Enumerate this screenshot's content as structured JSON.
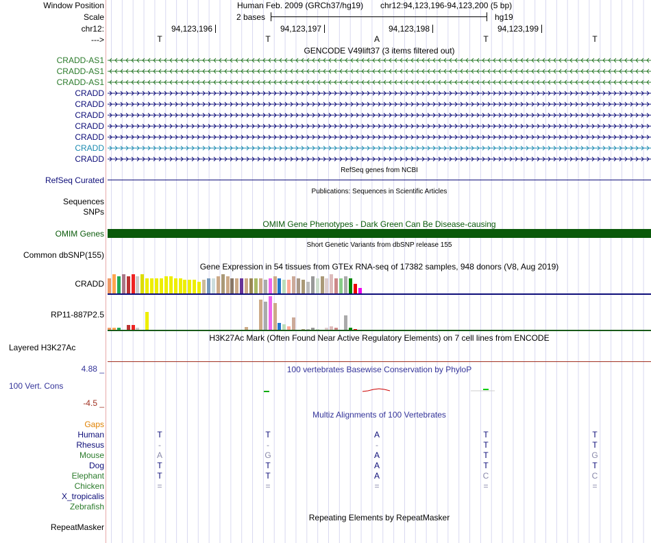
{
  "header": {
    "window_position_label": "Window Position",
    "scale_label": "Scale",
    "chrom_label": "chr12:",
    "strand_label": "--->",
    "assembly_title": "Human Feb. 2009 (GRCh37/hg19)",
    "position": "chr12:94,123,196-94,123,200 (5 bp)",
    "scale_text": "2 bases",
    "db": "hg19",
    "ruler": [
      "94,123,196",
      "94,123,197",
      "94,123,198",
      "94,123,199"
    ],
    "sequence": [
      "T",
      "T",
      "A",
      "T",
      "T"
    ]
  },
  "gencode": {
    "title": "GENCODE V49lift37 (3 items filtered out)",
    "items": [
      {
        "name": "CRADD-AS1",
        "strand": "-",
        "color": "#2a7a2a"
      },
      {
        "name": "CRADD-AS1",
        "strand": "-",
        "color": "#2a7a2a"
      },
      {
        "name": "CRADD-AS1",
        "strand": "-",
        "color": "#2a7a2a"
      },
      {
        "name": "CRADD",
        "strand": "+",
        "color": "#0c0c78"
      },
      {
        "name": "CRADD",
        "strand": "+",
        "color": "#0c0c78"
      },
      {
        "name": "CRADD",
        "strand": "+",
        "color": "#0c0c78"
      },
      {
        "name": "CRADD",
        "strand": "+",
        "color": "#0c0c78"
      },
      {
        "name": "CRADD",
        "strand": "+",
        "color": "#0c0c78"
      },
      {
        "name": "CRADD",
        "strand": "+",
        "color": "#1a8ab0"
      },
      {
        "name": "CRADD",
        "strand": "+",
        "color": "#0c0c78"
      }
    ]
  },
  "refseq": {
    "title": "RefSeq genes from NCBI",
    "label": "RefSeq Curated",
    "color": "#0c0c78"
  },
  "publications": {
    "title": "Publications: Sequences in Scientific Articles",
    "label1": "Sequences",
    "label2": "SNPs"
  },
  "omim": {
    "title": "OMIM Gene Phenotypes - Dark Green Can Be Disease-causing",
    "label": "OMIM Genes",
    "color": "#0a5a0a"
  },
  "dbsnp": {
    "title": "Short Genetic Variants from dbSNP release 155",
    "label": "Common dbSNP(155)"
  },
  "gtex": {
    "title": "Gene Expression in 54 tissues from GTEx RNA-seq of 17382 samples, 948 donors (V8, Aug 2019)",
    "genes": [
      {
        "name": "CRADD",
        "line_color": "#0c0c78",
        "values": [
          8,
          10,
          9,
          10,
          9,
          10,
          9,
          10,
          8,
          8,
          8,
          8,
          9,
          9,
          8,
          8,
          7,
          7,
          7,
          6,
          7,
          8,
          8,
          9,
          10,
          9,
          8,
          8,
          8,
          8,
          8,
          8,
          8,
          7,
          8,
          9,
          8,
          7,
          7,
          9,
          8,
          7,
          6,
          9,
          8,
          9,
          8,
          10,
          8,
          8,
          9,
          8,
          5,
          3
        ]
      },
      {
        "name": "RP11-887P2.5",
        "line_color": "#1a5a1a",
        "values": [
          1.2,
          1.2,
          1,
          0,
          2.8,
          2.8,
          1,
          0,
          10,
          0,
          0,
          0,
          0,
          0,
          0,
          0,
          0,
          0,
          0,
          0,
          0,
          0,
          0,
          0,
          0,
          0,
          0,
          0,
          0,
          1.5,
          0,
          0,
          17,
          16,
          19,
          15,
          4,
          3,
          2,
          7,
          0,
          0.5,
          0.5,
          1,
          0.5,
          0,
          1.2,
          2,
          1.2,
          0,
          8,
          1.2,
          0.5,
          0
        ]
      }
    ],
    "colors": [
      "#ee9966",
      "#ffa54f",
      "#22aa55",
      "#aa7788",
      "#bb3333",
      "#ee2222",
      "#cccccc",
      "#dddd00",
      "#eeee00",
      "#eeee00",
      "#eeee00",
      "#eeee00",
      "#eeee00",
      "#eeee00",
      "#eeee00",
      "#eeee00",
      "#eeee00",
      "#eeee00",
      "#eeee00",
      "#eeee00",
      "#ccbb99",
      "#7799bb",
      "#ccdddd",
      "#ccaa88",
      "#aa9977",
      "#ccaa88",
      "#887766",
      "#ccaa88",
      "#663399",
      "#ccaa88",
      "#998855",
      "#aabb66",
      "#ccaa88",
      "#aaaaaa",
      "#ee66ee",
      "#ccaa88",
      "#2277cc",
      "#bbddbb",
      "#ffaa99",
      "#ccaa99",
      "#aa9988",
      "#aa9977",
      "#bbbbbb",
      "#999999",
      "#ccddcc",
      "#aa9977",
      "#ddcccc",
      "#ddbbbb",
      "#cc8888",
      "#88cc88",
      "#aaaaaa",
      "#008800",
      "#ee0000",
      "#ee00ee"
    ]
  },
  "h3k27ac": {
    "title": "H3K27Ac Mark (Often Found Near Active Regulatory Elements) on 7 cell lines from ENCODE",
    "label": "Layered H3K27Ac"
  },
  "phylop": {
    "title": "100 vertebrates Basewise Conservation by PhyloP",
    "label": "100 Vert. Cons",
    "max": "4.88 _",
    "min": "-4.5 _"
  },
  "multiz": {
    "title": "Multiz Alignments of 100 Vertebrates",
    "gaps_label": "Gaps",
    "species": [
      {
        "name": "Human",
        "color": "#0c0c78",
        "bases": [
          "T",
          "T",
          "A",
          "T",
          "T"
        ],
        "dim": [
          false,
          false,
          false,
          false,
          false
        ]
      },
      {
        "name": "Rhesus",
        "color": "#0c0c78",
        "bases": [
          "-",
          "-",
          "-",
          "T",
          "T"
        ],
        "dim": [
          true,
          true,
          true,
          false,
          false
        ]
      },
      {
        "name": "Mouse",
        "color": "#2a7a2a",
        "bases": [
          "A",
          "G",
          "A",
          "T",
          "G"
        ],
        "dim": [
          true,
          true,
          false,
          false,
          true
        ]
      },
      {
        "name": "Dog",
        "color": "#0c0c78",
        "bases": [
          "T",
          "T",
          "A",
          "T",
          "T"
        ],
        "dim": [
          false,
          false,
          false,
          false,
          false
        ]
      },
      {
        "name": "Elephant",
        "color": "#2a7a2a",
        "bases": [
          "T",
          "T",
          "A",
          "C",
          "C"
        ],
        "dim": [
          false,
          false,
          false,
          true,
          true
        ]
      },
      {
        "name": "Chicken",
        "color": "#2a7a2a",
        "bases": [
          "=",
          "=",
          "=",
          "=",
          "="
        ],
        "dim": [
          true,
          true,
          true,
          true,
          true
        ]
      },
      {
        "name": "X_tropicalis",
        "color": "#0c0c78",
        "bases": [
          "",
          "",
          "",
          "",
          ""
        ],
        "dim": [
          false,
          false,
          false,
          false,
          false
        ]
      },
      {
        "name": "Zebrafish",
        "color": "#2a7a2a",
        "bases": [
          "",
          "",
          "",
          "",
          ""
        ],
        "dim": [
          false,
          false,
          false,
          false,
          false
        ]
      }
    ]
  },
  "repeatmasker": {
    "title": "Repeating Elements by RepeatMasker",
    "label": "RepeatMasker"
  }
}
